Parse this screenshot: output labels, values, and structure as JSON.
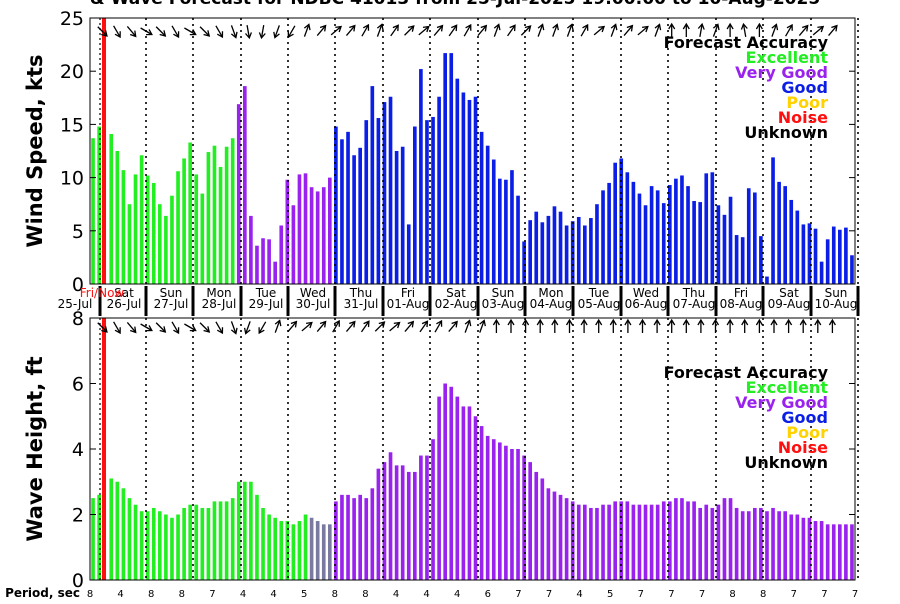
{
  "title": "& Wave Forecast for NDBC 41013 from 25-Jul-2025 19:00:00 to 10-Aug-2025",
  "legend": {
    "heading": "Forecast Accuracy",
    "items": [
      {
        "label": "Excellent",
        "color": "#22ee22"
      },
      {
        "label": "Very Good",
        "color": "#9a22ee"
      },
      {
        "label": "Good",
        "color": "#0a1ee6"
      },
      {
        "label": "Poor",
        "color": "#ffd200"
      },
      {
        "label": "Noise",
        "color": "#ff1010"
      },
      {
        "label": "Unknown",
        "color": "#000000"
      }
    ]
  },
  "now_marker_label": "Fri/Now",
  "day_labels": [
    {
      "dow": "Sat",
      "date": "26-Jul"
    },
    {
      "dow": "Sun",
      "date": "27-Jul"
    },
    {
      "dow": "Mon",
      "date": "28-Jul"
    },
    {
      "dow": "Tue",
      "date": "29-Jul"
    },
    {
      "dow": "Wed",
      "date": "30-Jul"
    },
    {
      "dow": "Thu",
      "date": "31-Jul"
    },
    {
      "dow": "Fri",
      "date": "01-Aug"
    },
    {
      "dow": "Sat",
      "date": "02-Aug"
    },
    {
      "dow": "Sun",
      "date": "03-Aug"
    },
    {
      "dow": "Mon",
      "date": "04-Aug"
    },
    {
      "dow": "Tue",
      "date": "05-Aug"
    },
    {
      "dow": "Wed",
      "date": "06-Aug"
    },
    {
      "dow": "Thu",
      "date": "07-Aug"
    },
    {
      "dow": "Fri",
      "date": "08-Aug"
    },
    {
      "dow": "Sat",
      "date": "09-Aug"
    },
    {
      "dow": "Sun",
      "date": "10-Aug"
    }
  ],
  "start_date_label": "25-Jul",
  "period_label": "Period, sec",
  "period_values": [
    "8",
    "4",
    "8",
    "8",
    "7",
    "4",
    "4",
    "5",
    "8",
    "8",
    "4",
    "4",
    "4",
    "6",
    "7",
    "7",
    "4",
    "5",
    "7",
    "7",
    "7",
    "8",
    "8",
    "7",
    "7",
    "7"
  ],
  "chart_data": [
    {
      "type": "bar",
      "ylabel": "Wind Speed, kts",
      "ylim": [
        0,
        25
      ],
      "yticks": [
        0,
        5,
        10,
        15,
        20,
        25
      ],
      "grid": false,
      "series": [
        {
          "values": [
            13.7,
            14.8,
            0,
            14.1,
            12.5,
            10.7,
            7.5,
            10.3,
            12.1,
            10.2,
            9.5,
            7.5,
            6.4,
            8.3,
            10.6,
            11.8,
            13.3,
            10.3,
            8.5,
            12.4,
            13.0,
            11.0,
            12.9,
            13.7,
            16.9,
            18.6,
            6.4,
            3.6,
            4.3,
            4.2,
            2.1,
            5.5,
            9.8,
            7.4,
            10.3,
            10.4,
            9.1,
            8.7,
            9.1,
            10.0,
            14.8,
            13.6,
            14.3,
            12.1,
            12.8,
            15.4,
            18.6,
            15.6,
            17.1,
            17.6,
            12.5,
            12.9,
            5.6,
            14.8,
            20.2,
            15.4,
            15.7,
            17.6,
            21.7,
            21.7,
            19.3,
            18.0,
            17.3,
            17.6,
            14.3,
            13.0,
            11.7,
            9.9,
            9.8,
            10.7,
            8.3,
            4.0,
            6.0,
            6.8,
            5.8,
            6.4,
            7.3,
            6.8,
            5.5,
            5.9,
            6.3,
            5.5,
            6.2,
            7.5,
            8.8,
            9.5,
            11.4,
            11.8,
            10.5,
            9.6,
            8.5,
            7.4,
            9.2,
            8.8,
            7.6,
            9.3,
            9.9,
            10.2,
            9.2,
            7.8,
            7.7,
            10.4,
            10.5,
            7.4,
            6.5,
            8.2,
            4.6,
            4.4,
            9.0,
            8.6,
            4.5,
            0.7,
            11.9,
            9.6,
            9.2,
            7.9,
            6.9,
            5.6,
            5.7,
            5.2,
            2.1,
            4.2,
            5.4,
            5.1,
            5.3,
            2.7
          ],
          "colors": [
            "G",
            "G",
            "G",
            "G",
            "G",
            "G",
            "G",
            "G",
            "G",
            "G",
            "G",
            "G",
            "G",
            "G",
            "G",
            "G",
            "G",
            "G",
            "G",
            "G",
            "G",
            "G",
            "G",
            "G",
            "V",
            "V",
            "V",
            "V",
            "V",
            "V",
            "V",
            "V",
            "V",
            "V",
            "V",
            "V",
            "V",
            "V",
            "V",
            "V",
            "B",
            "B",
            "B",
            "B",
            "B",
            "B",
            "B",
            "B",
            "B",
            "B",
            "B",
            "B",
            "B",
            "B",
            "B",
            "B",
            "B",
            "B",
            "B",
            "B",
            "B",
            "B",
            "B",
            "B",
            "B",
            "B",
            "B",
            "B",
            "B",
            "B",
            "B",
            "B",
            "B",
            "B",
            "B",
            "B",
            "B",
            "B",
            "B",
            "B",
            "B",
            "B",
            "B",
            "B",
            "B",
            "B",
            "B",
            "B",
            "B",
            "B",
            "B",
            "B",
            "B",
            "B",
            "B",
            "B",
            "B",
            "B",
            "B",
            "B",
            "B",
            "B",
            "B",
            "B",
            "B",
            "B",
            "B",
            "B",
            "B",
            "B",
            "B",
            "B",
            "B",
            "B",
            "B",
            "B",
            "B",
            "B",
            "B",
            "B",
            "B",
            "B",
            "B",
            "B",
            "B",
            "B"
          ]
        }
      ]
    },
    {
      "type": "bar",
      "ylabel": "Wave Height, ft",
      "ylim": [
        0,
        8
      ],
      "yticks": [
        0,
        2,
        4,
        6,
        8
      ],
      "grid": false,
      "series": [
        {
          "values": [
            2.5,
            2.6,
            0,
            3.1,
            3.0,
            2.8,
            2.5,
            2.3,
            2.1,
            2.1,
            2.2,
            2.1,
            2.0,
            1.9,
            2.0,
            2.2,
            2.3,
            2.3,
            2.2,
            2.2,
            2.4,
            2.4,
            2.4,
            2.5,
            3.0,
            3.0,
            3.0,
            2.6,
            2.2,
            2.0,
            1.9,
            1.8,
            1.8,
            1.7,
            1.8,
            2.0,
            1.9,
            1.8,
            1.7,
            1.7,
            2.4,
            2.6,
            2.6,
            2.5,
            2.6,
            2.5,
            2.8,
            3.4,
            3.6,
            3.9,
            3.5,
            3.5,
            3.3,
            3.3,
            3.8,
            3.8,
            4.3,
            5.6,
            6.0,
            5.9,
            5.6,
            5.3,
            5.3,
            5.0,
            4.7,
            4.4,
            4.3,
            4.2,
            4.1,
            4.0,
            4.0,
            3.8,
            3.6,
            3.3,
            3.1,
            2.8,
            2.7,
            2.6,
            2.5,
            2.4,
            2.3,
            2.3,
            2.2,
            2.2,
            2.3,
            2.3,
            2.4,
            2.4,
            2.4,
            2.3,
            2.3,
            2.3,
            2.3,
            2.3,
            2.4,
            2.4,
            2.5,
            2.5,
            2.4,
            2.4,
            2.2,
            2.3,
            2.2,
            2.3,
            2.5,
            2.5,
            2.2,
            2.1,
            2.1,
            2.2,
            2.2,
            2.1,
            2.2,
            2.1,
            2.1,
            2.0,
            2.0,
            1.9,
            1.9,
            1.8,
            1.8,
            1.7,
            1.7,
            1.7,
            1.7,
            1.7
          ],
          "colors": [
            "G",
            "G",
            "G",
            "G",
            "G",
            "G",
            "G",
            "G",
            "G",
            "G",
            "G",
            "G",
            "G",
            "G",
            "G",
            "G",
            "G",
            "G",
            "G",
            "G",
            "G",
            "G",
            "G",
            "G",
            "G",
            "G",
            "G",
            "G",
            "G",
            "G",
            "G",
            "G",
            "G",
            "G",
            "G",
            "G",
            "Y",
            "Y",
            "Y",
            "Y",
            "V",
            "V",
            "V",
            "V",
            "V",
            "V",
            "V",
            "V",
            "V",
            "V",
            "V",
            "V",
            "V",
            "V",
            "V",
            "V",
            "V",
            "V",
            "V",
            "V",
            "V",
            "V",
            "V",
            "V",
            "V",
            "V",
            "V",
            "V",
            "V",
            "V",
            "V",
            "V",
            "V",
            "V",
            "V",
            "V",
            "V",
            "V",
            "V",
            "V",
            "V",
            "V",
            "V",
            "V",
            "V",
            "V",
            "V",
            "V",
            "V",
            "V",
            "V",
            "V",
            "V",
            "V",
            "V",
            "V",
            "V",
            "V",
            "V",
            "V",
            "V",
            "V",
            "V",
            "V",
            "V",
            "V",
            "V",
            "V",
            "V",
            "V",
            "V",
            "V",
            "V",
            "V",
            "V",
            "V",
            "V",
            "V",
            "V",
            "V",
            "V",
            "V",
            "V",
            "V",
            "V",
            "V"
          ]
        }
      ]
    }
  ],
  "color_codes": {
    "G": "#22ee22",
    "V": "#9a22ee",
    "B": "#0a1ee6",
    "Y": "#7a7aa0"
  },
  "wind_arrows": [
    315,
    330,
    320,
    300,
    315,
    330,
    300,
    315,
    330,
    340,
    350,
    10,
    20,
    30,
    200,
    220,
    230,
    220,
    210,
    200,
    215,
    225,
    230,
    220,
    215,
    210,
    220,
    200,
    215,
    225,
    200,
    200,
    200,
    210,
    230,
    200,
    220,
    230,
    200,
    180,
    180,
    190,
    200,
    180,
    170,
    180,
    200,
    210,
    220,
    230,
    220
  ],
  "wave_arrows": [
    315,
    330,
    320,
    300,
    315,
    330,
    300,
    315,
    330,
    340,
    20,
    30,
    200,
    220,
    230,
    220,
    210,
    220,
    215,
    225,
    230,
    220,
    215,
    210,
    220,
    200,
    200,
    180,
    180,
    180,
    180,
    180,
    180,
    180,
    180,
    180,
    180,
    180,
    180,
    180,
    180,
    180,
    180,
    180,
    180,
    180,
    180,
    180,
    180,
    180,
    180
  ]
}
